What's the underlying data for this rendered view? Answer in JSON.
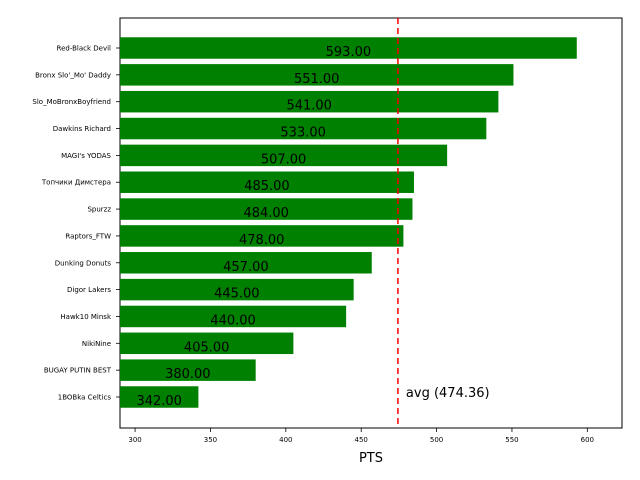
{
  "chart_data": {
    "type": "bar",
    "orientation": "horizontal",
    "categories": [
      "Red-Black Devil",
      "Bronx Slo'_Mo' Daddy",
      "Slo_MoBronxBoyfriend",
      "Dawkins Richard",
      "MAGI's YODAS",
      "Топчики Димстера",
      "Spurzz",
      "Raptors_FTW",
      "Dunking Donuts",
      "Digor Lakers",
      "Hawk10 Minsk",
      "NikiNine",
      "BUGAY PUTIN BEST",
      "1BOBka Celtics"
    ],
    "values": [
      593,
      551,
      541,
      533,
      507,
      485,
      484,
      478,
      457,
      445,
      440,
      405,
      380,
      342
    ],
    "value_labels": [
      "593.00",
      "551.00",
      "541.00",
      "533.00",
      "507.00",
      "485.00",
      "484.00",
      "478.00",
      "457.00",
      "445.00",
      "440.00",
      "405.00",
      "380.00",
      "342.00"
    ],
    "xlabel": "PTS",
    "ylabel": "",
    "xlim": [
      290,
      623
    ],
    "xticks": [
      "300",
      "350",
      "400",
      "450",
      "500",
      "550",
      "600"
    ],
    "average": 474.36,
    "average_label": "avg (474.36)",
    "bar_color": "#008000",
    "avg_line_color": "#ff0000",
    "grid": false
  }
}
